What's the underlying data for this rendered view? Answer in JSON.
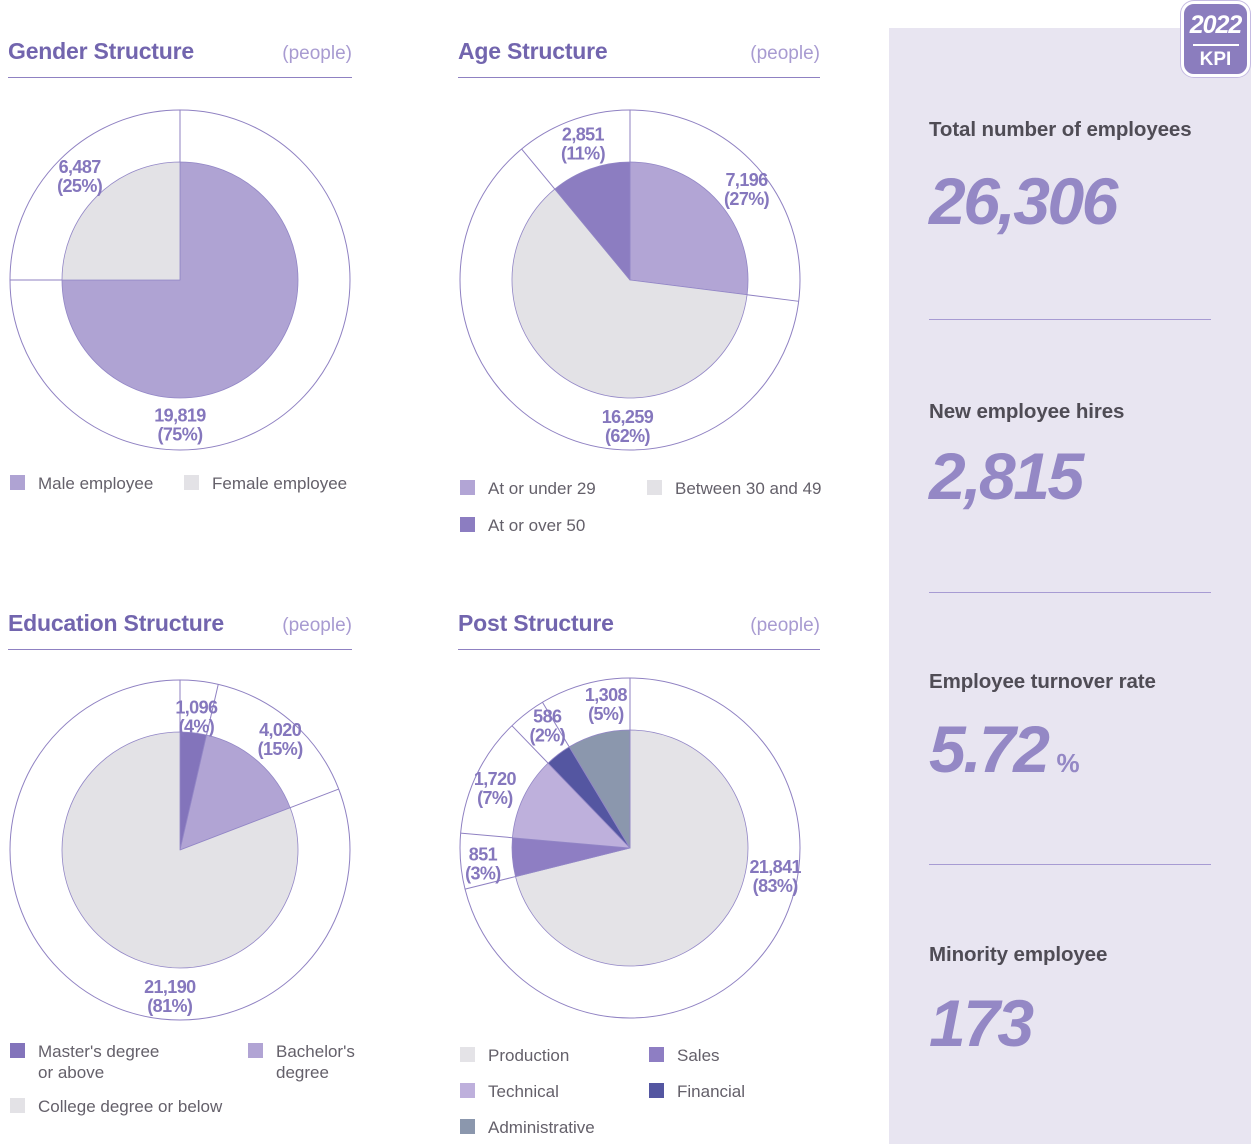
{
  "kpi_panel": {
    "bg": "#E8E5F1",
    "badge": {
      "year": "2022",
      "label": "KPI",
      "bg": "#8B7DBE",
      "text_color": "#ffffff"
    },
    "number_color": "#9488C5",
    "sections": [
      {
        "label": "Total number of employees",
        "value": "26,306",
        "suffix": ""
      },
      {
        "label": "New employee hires",
        "value": "2,815",
        "suffix": ""
      },
      {
        "label": "Employee turnover rate",
        "value": "5.72",
        "suffix": "%"
      },
      {
        "label": "Minority employee",
        "value": "173",
        "suffix": ""
      }
    ]
  },
  "chart_data": [
    {
      "type": "pie",
      "title": "Gender Structure",
      "unit": "(people)",
      "total": 26306,
      "start_angle_deg": 0,
      "clockwise": true,
      "outer_ring": true,
      "ring_color": "#8F81C2",
      "legend_position": "bottom",
      "slices": [
        {
          "label": "Male employee",
          "value": 19819,
          "display_value": "19,819",
          "pct": 75,
          "color": "#AFA3D3",
          "display_deg": 270,
          "label_angle": 180,
          "label_r": 0.85,
          "legend_lines": [
            "Male employee"
          ]
        },
        {
          "label": "Female employee",
          "value": 6487,
          "display_value": "6,487",
          "pct": 25,
          "color": "#E3E2E6",
          "display_deg": 90,
          "label_angle": 316,
          "label_r": 0.85,
          "legend_lines": [
            "Female employee"
          ]
        }
      ]
    },
    {
      "type": "pie",
      "title": "Age Structure",
      "unit": "(people)",
      "total": 26306,
      "start_angle_deg": 0,
      "clockwise": true,
      "outer_ring": true,
      "ring_color": "#8F81C2",
      "legend_position": "bottom",
      "slices": [
        {
          "label": "At or under 29",
          "value": 7196,
          "display_value": "7,196",
          "pct": 27,
          "color": "#B2A5D5",
          "display_deg": 97.2,
          "label_angle": 52,
          "label_r": 0.87,
          "legend_lines": [
            "At or under 29"
          ]
        },
        {
          "label": "Between 30 and 49",
          "value": 16259,
          "display_value": "16,259",
          "pct": 62,
          "color": "#E3E2E6",
          "display_deg": 223.2,
          "label_angle": 181,
          "label_r": 0.86,
          "legend_lines": [
            "Between 30 and 49"
          ]
        },
        {
          "label": "At or over 50",
          "value": 2851,
          "display_value": "2,851",
          "pct": 11,
          "color": "#8C7DC1",
          "display_deg": 39.6,
          "label_angle": 341,
          "label_r": 0.85,
          "legend_lines": [
            "At or over 50"
          ]
        }
      ]
    },
    {
      "type": "pie",
      "title": "Education Structure",
      "unit": "(people)",
      "total": 26306,
      "start_angle_deg": 0,
      "clockwise": true,
      "outer_ring": true,
      "ring_color": "#8F81C2",
      "legend_position": "bottom",
      "slices": [
        {
          "label": "Master's degree or above",
          "value": 1096,
          "display_value": "1,096",
          "pct": 4,
          "color": "#8374BB",
          "display_deg": 13,
          "label_angle": 7,
          "label_r": 0.79,
          "legend_lines": [
            "Master's degree",
            "or above"
          ]
        },
        {
          "label": "Bachelor's degree",
          "value": 4020,
          "display_value": "4,020",
          "pct": 15,
          "color": "#B1A4D4",
          "display_deg": 56,
          "label_angle": 42,
          "label_r": 0.88,
          "legend_lines": [
            "Bachelor's",
            "degree"
          ]
        },
        {
          "label": "College degree or below",
          "value": 21190,
          "display_value": "21,190",
          "pct": 81,
          "color": "#E3E2E6",
          "display_deg": 291,
          "label_angle": 184,
          "label_r": 0.86,
          "legend_lines": [
            "College degree or below"
          ]
        }
      ]
    },
    {
      "type": "pie",
      "title": "Post Structure",
      "unit": "(people)",
      "total": 26306,
      "start_angle_deg": 0,
      "clockwise": true,
      "outer_ring": true,
      "ring_color": "#8F81C2",
      "legend_position": "bottom",
      "slices": [
        {
          "label": "Production",
          "value": 21841,
          "display_value": "21,841",
          "pct": 83,
          "color": "#E4E3E7",
          "display_deg": 256,
          "label_angle": 101,
          "label_r": 0.87,
          "legend_lines": [
            "Production"
          ]
        },
        {
          "label": "Sales",
          "value": 851,
          "display_value": "851",
          "pct": 3,
          "color": "#8E7EC3",
          "display_deg": 19,
          "label_angle": 264,
          "label_r": 0.87,
          "legend_lines": [
            "Sales"
          ]
        },
        {
          "label": "Technical",
          "value": 1720,
          "display_value": "1,720",
          "pct": 7,
          "color": "#BEB0DC",
          "display_deg": 41,
          "label_angle": 294,
          "label_r": 0.87,
          "legend_lines": [
            "Technical"
          ]
        },
        {
          "label": "Financial",
          "value": 586,
          "display_value": "586",
          "pct": 2,
          "color": "#5456A1",
          "display_deg": 13,
          "label_angle": 326,
          "label_r": 0.87,
          "legend_lines": [
            "Financial"
          ]
        },
        {
          "label": "Administrative",
          "value": 1308,
          "display_value": "1,308",
          "pct": 5,
          "color": "#8B97AD",
          "display_deg": 31,
          "label_angle": 350.5,
          "label_r": 0.86,
          "legend_lines": [
            "Administrative"
          ]
        }
      ]
    }
  ]
}
